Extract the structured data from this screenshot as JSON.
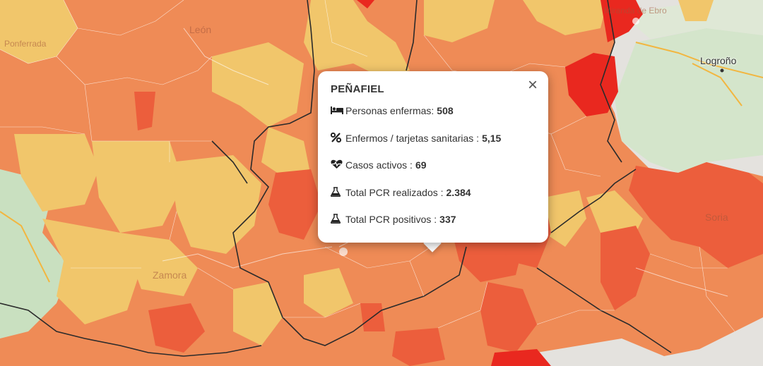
{
  "map": {
    "places": [
      {
        "id": "logrono",
        "label": "Logroño"
      },
      {
        "id": "soria",
        "label": "Soria"
      },
      {
        "id": "zamora",
        "label": "Zamora"
      },
      {
        "id": "leon",
        "label": "León"
      },
      {
        "id": "miranda",
        "label": "Miranda de Ebro"
      },
      {
        "id": "ponferrada",
        "label": "Ponferrada"
      }
    ],
    "colors": {
      "base": "#e4e2de",
      "green": "#c9e0c0",
      "yellow": "#f1c66b",
      "orange": "#ef8b56",
      "red_orange": "#ec5e3c",
      "red": "#e9281f",
      "border": "#2b2b2b",
      "road": "#f2b640"
    }
  },
  "popup": {
    "title": "PEÑAFIEL",
    "close_symbol": "×",
    "rows": [
      {
        "icon": "bed-icon",
        "label": "Personas enfermas:",
        "value": "508"
      },
      {
        "icon": "percent-icon",
        "label": "Enfermos / tarjetas sanitarias :",
        "value": "5,15"
      },
      {
        "icon": "heartbeat-icon",
        "label": "Casos activos :",
        "value": "69"
      },
      {
        "icon": "flask-icon",
        "label": "Total PCR realizados :",
        "value": "2.384"
      },
      {
        "icon": "flask-icon",
        "label": "Total PCR positivos :",
        "value": "337"
      }
    ]
  }
}
